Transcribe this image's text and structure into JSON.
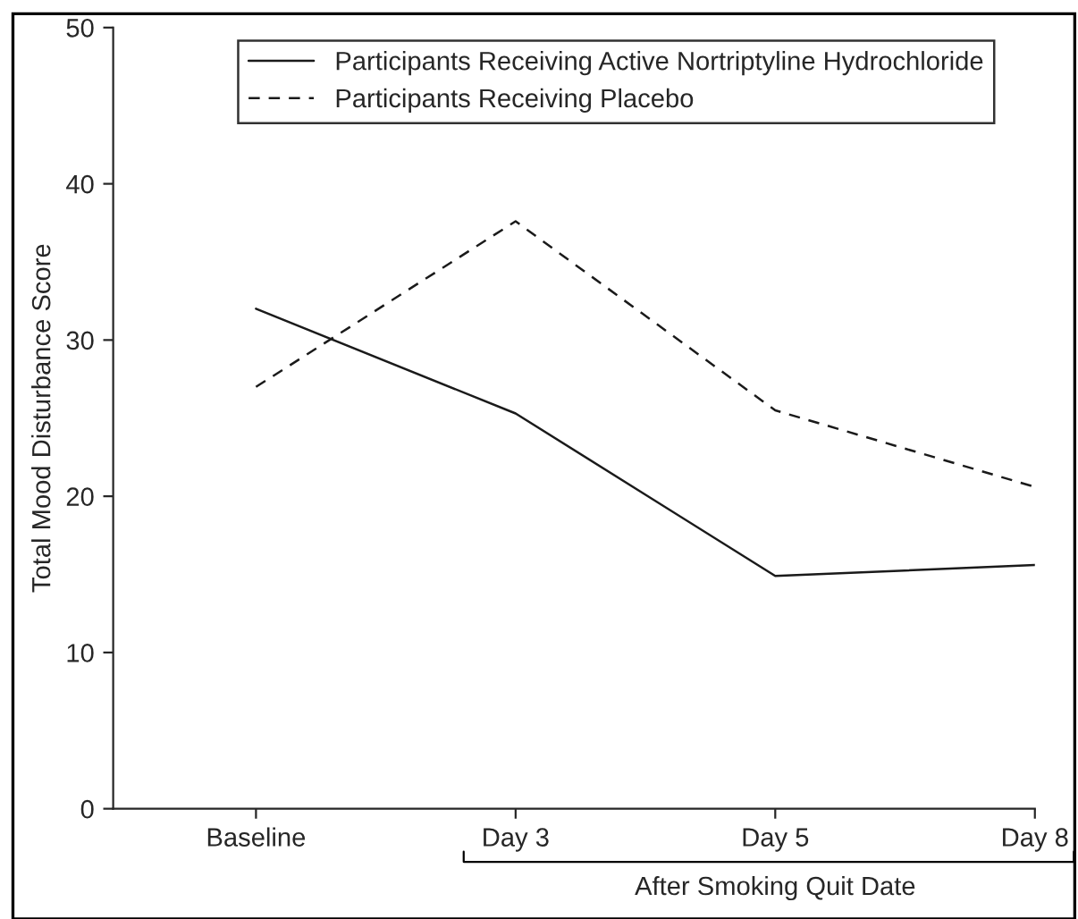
{
  "chart_data": {
    "type": "line",
    "ylabel": "Total Mood Disturbance Score",
    "categories": [
      "Baseline",
      "Day 3",
      "Day 5",
      "Day 8"
    ],
    "series": [
      {
        "name": "Participants Receiving Active Nortriptyline Hydrochloride",
        "color": "#1a1a1a",
        "line_style": "solid",
        "values": [
          32,
          25.3,
          14.9,
          15.6
        ]
      },
      {
        "name": "Participants Receiving Placebo",
        "color": "#1a1a1a",
        "line_style": "dashed",
        "values": [
          27,
          37.6,
          25.5,
          20.6
        ]
      }
    ],
    "ylim": [
      0,
      50
    ],
    "yticks": [
      0,
      10,
      20,
      30,
      40,
      50
    ],
    "grid": false,
    "legend": "top right",
    "marker": "none",
    "annotations": [
      "After Smoking Quit Date"
    ]
  }
}
